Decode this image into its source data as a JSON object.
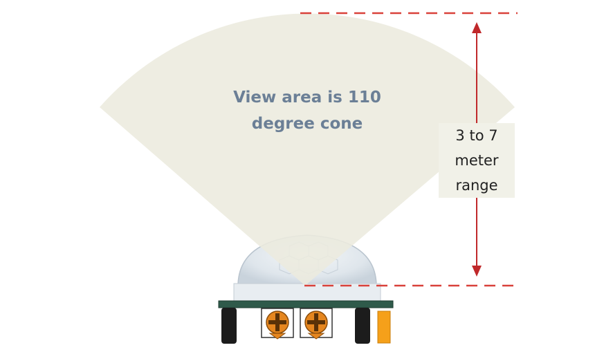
{
  "cone_label": {
    "line1": "View area is 110",
    "line2": "degree cone"
  },
  "range_label": {
    "line1": "3 to 7",
    "line2": "meter",
    "line3": "range"
  },
  "colors": {
    "cone_fill": "#ecebde",
    "dashed_line": "#d9413a",
    "arrow": "#c0282a",
    "cone_text": "#6b7f96",
    "pcb": "#2f5a4a",
    "pin": "#1c1c1c",
    "potentiometer": "#e5861f",
    "connector": "#f5a01a"
  },
  "icons": {
    "sensor": "pir-sensor-icon",
    "potentiometer": "potentiometer-icon"
  }
}
